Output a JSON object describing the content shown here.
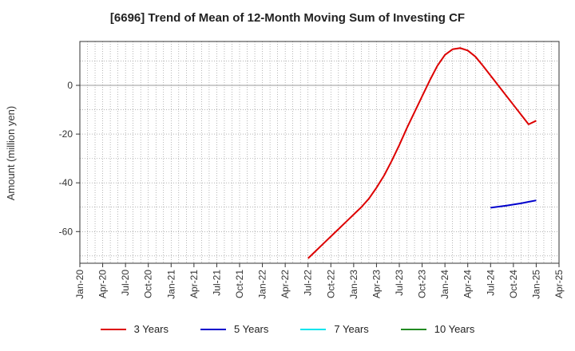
{
  "title": "[6696]  Trend of Mean of 12-Month Moving Sum of Investing CF",
  "chart_data": {
    "type": "line",
    "title": "[6696]  Trend of Mean of 12-Month Moving Sum of Investing CF",
    "ylabel": "Amount (million yen)",
    "xlabel": "",
    "ylim": [
      -73,
      18
    ],
    "yticks": [
      0,
      -20,
      -40,
      -60
    ],
    "x_tick_labels": [
      "Jan-20",
      "Apr-20",
      "Jul-20",
      "Oct-20",
      "Jan-21",
      "Apr-21",
      "Jul-21",
      "Oct-21",
      "Jan-22",
      "Apr-22",
      "Jul-22",
      "Oct-22",
      "Jan-23",
      "Apr-23",
      "Jul-23",
      "Oct-23",
      "Jan-24",
      "Apr-24",
      "Jul-24",
      "Oct-24",
      "Jan-25",
      "Apr-25"
    ],
    "grid": true,
    "legend_position": "bottom",
    "series": [
      {
        "name": "3 Years",
        "color": "#dd0000",
        "x": [
          "2022-07",
          "2022-08",
          "2022-09",
          "2022-10",
          "2022-11",
          "2022-12",
          "2023-01",
          "2023-02",
          "2023-03",
          "2023-04",
          "2023-05",
          "2023-06",
          "2023-07",
          "2023-08",
          "2023-09",
          "2023-10",
          "2023-11",
          "2023-12",
          "2024-01",
          "2024-02",
          "2024-03",
          "2024-04",
          "2024-05",
          "2024-06",
          "2024-07",
          "2024-08",
          "2024-09",
          "2024-10",
          "2024-11",
          "2024-12",
          "2025-01"
        ],
        "values": [
          -71,
          -68,
          -65,
          -62,
          -59,
          -56,
          -53,
          -50,
          -46.5,
          -42,
          -37,
          -31,
          -24.5,
          -17.5,
          -11,
          -4.5,
          2,
          8,
          12.5,
          14.8,
          15.3,
          14.3,
          11.8,
          8,
          4,
          0,
          -4,
          -8,
          -12,
          -16,
          -14.5
        ]
      },
      {
        "name": "5 Years",
        "color": "#0000cc",
        "x": [
          "2024-07",
          "2024-08",
          "2024-09",
          "2024-10",
          "2024-11",
          "2024-12",
          "2025-01"
        ],
        "values": [
          -50.2,
          -49.8,
          -49.4,
          -48.9,
          -48.4,
          -47.8,
          -47.2
        ]
      },
      {
        "name": "7 Years",
        "color": "#00e5ee",
        "x": [],
        "values": []
      },
      {
        "name": "10 Years",
        "color": "#228b22",
        "x": [],
        "values": []
      }
    ]
  }
}
